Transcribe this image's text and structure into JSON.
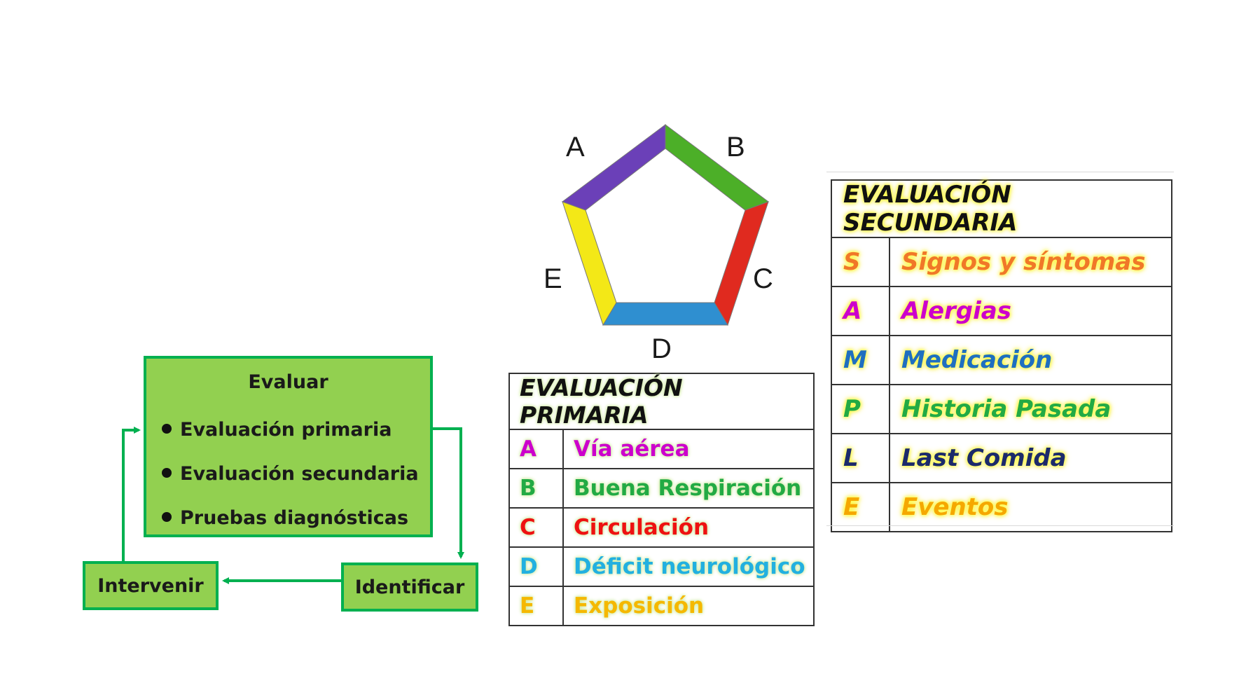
{
  "flow": {
    "evaluar_title": "Evaluar",
    "bullets": [
      "Evaluación primaria",
      "Evaluación secundaria",
      "Pruebas diagnósticas"
    ],
    "intervenir": "Intervenir",
    "identificar": "Identificar",
    "box_fill": "#92d050",
    "box_border": "#00b050"
  },
  "pentagon": {
    "labels": [
      "A",
      "B",
      "C",
      "D",
      "E"
    ],
    "segment_colors": {
      "A": "#6b40b8",
      "B": "#4caf28",
      "C": "#e02a1f",
      "D": "#2f8fd0",
      "E": "#f3e817"
    }
  },
  "primary": {
    "title": "EVALUACIÓN PRIMARIA",
    "rows": [
      {
        "letter": "A",
        "term": "Vía aérea",
        "color": "#cc00cc"
      },
      {
        "letter": "B",
        "term": "Buena Respiración",
        "color": "#22aa44"
      },
      {
        "letter": "C",
        "term": "Circulación",
        "color": "#ee1111"
      },
      {
        "letter": "D",
        "term": "Déficit neurológico",
        "color": "#22b0e0"
      },
      {
        "letter": "E",
        "term": "Exposición",
        "color": "#f5b800"
      }
    ]
  },
  "secondary": {
    "title": "EVALUACIÓN SECUNDARIA",
    "rows": [
      {
        "letter": "S",
        "term": "Signos y síntomas",
        "color": "#f07828"
      },
      {
        "letter": "A",
        "term": "Alergias",
        "color": "#cc00cc"
      },
      {
        "letter": "M",
        "term": "Medicación",
        "color": "#1f6fc0"
      },
      {
        "letter": "P",
        "term": "Historia Pasada",
        "color": "#22aa44"
      },
      {
        "letter": "L",
        "term": "Last Comida",
        "color": "#1b2a6b"
      },
      {
        "letter": "E",
        "term": "Eventos",
        "color": "#f5a800"
      }
    ]
  }
}
